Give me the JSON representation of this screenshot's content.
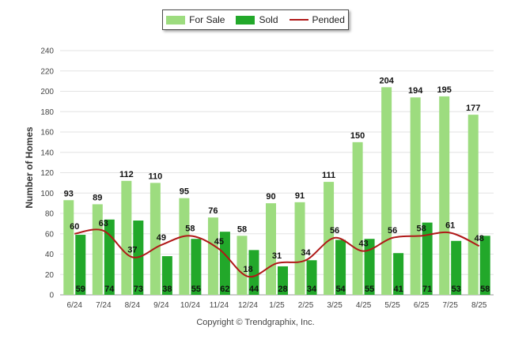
{
  "chart_data": {
    "type": "bar",
    "title": "",
    "xlabel": "",
    "ylabel": "Number of Homes",
    "ylim": [
      0,
      240
    ],
    "yticks": [
      0,
      20,
      40,
      60,
      80,
      100,
      120,
      140,
      160,
      180,
      200,
      220,
      240
    ],
    "grid": true,
    "legend_position": "top",
    "categories": [
      "6/24",
      "7/24",
      "8/24",
      "9/24",
      "10/24",
      "11/24",
      "12/24",
      "1/25",
      "2/25",
      "3/25",
      "4/25",
      "5/25",
      "6/25",
      "7/25",
      "8/25"
    ],
    "series": [
      {
        "name": "For Sale",
        "kind": "bar",
        "color": "#9ddc7f",
        "values": [
          93,
          89,
          112,
          110,
          95,
          76,
          58,
          90,
          91,
          111,
          150,
          204,
          194,
          195,
          177
        ]
      },
      {
        "name": "Sold",
        "kind": "bar",
        "color": "#22a82a",
        "values": [
          59,
          74,
          73,
          38,
          55,
          62,
          44,
          28,
          34,
          54,
          55,
          41,
          71,
          53,
          58
        ]
      },
      {
        "name": "Pended",
        "kind": "line",
        "color": "#b01818",
        "values": [
          60,
          63,
          37,
          49,
          58,
          45,
          18,
          31,
          34,
          56,
          43,
          56,
          58,
          61,
          48
        ]
      }
    ]
  },
  "footer": {
    "copyright": "Copyright © Trendgraphix, Inc."
  }
}
